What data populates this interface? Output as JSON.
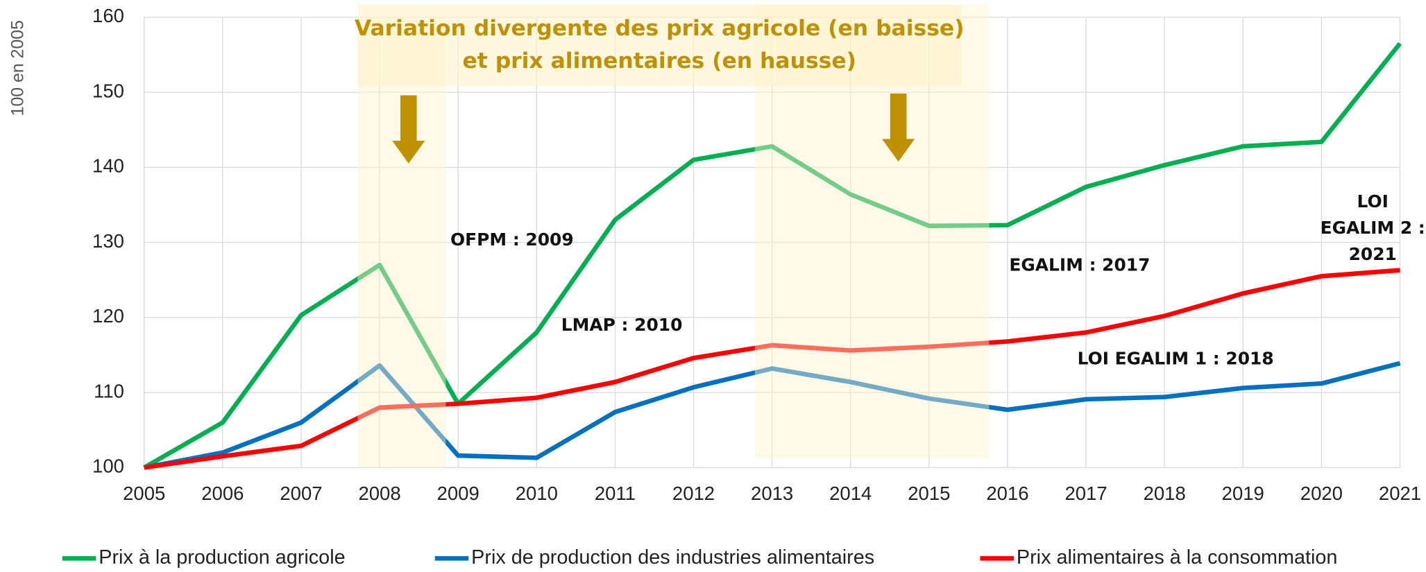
{
  "chart_data": {
    "type": "line",
    "title": [
      "Variation divergente des prix agricole (en baisse)",
      "et prix alimentaires (en hausse)"
    ],
    "y_label": "100 en 2005",
    "x": [
      2005,
      2006,
      2007,
      2008,
      2009,
      2010,
      2011,
      2012,
      2013,
      2014,
      2015,
      2016,
      2017,
      2018,
      2019,
      2020,
      2021
    ],
    "xlim": [
      2005,
      2021
    ],
    "xticks": [
      2005,
      2006,
      2007,
      2008,
      2009,
      2010,
      2011,
      2012,
      2013,
      2014,
      2015,
      2016,
      2017,
      2018,
      2019,
      2020,
      2021
    ],
    "ylim": [
      100,
      160
    ],
    "yticks": [
      100,
      110,
      120,
      130,
      140,
      150,
      160
    ],
    "grid": true,
    "legend": "bottom",
    "series": [
      {
        "name": "Prix à la production agricole",
        "color": "#00b050",
        "values": [
          100,
          106,
          120.3,
          127,
          108.5,
          118,
          133,
          141,
          142.8,
          136.4,
          132.2,
          132.3,
          137.4,
          140.3,
          142.8,
          143.4,
          156.5
        ]
      },
      {
        "name": "Prix de production des industries alimentaires",
        "color": "#0070c0",
        "values": [
          100,
          102,
          106,
          113.6,
          101.6,
          101.3,
          107.4,
          110.7,
          113.2,
          111.4,
          109.2,
          107.7,
          109.1,
          109.4,
          110.6,
          111.2,
          113.9
        ]
      },
      {
        "name": "Prix alimentaires à la consommation",
        "color": "#ff0000",
        "values": [
          100,
          101.5,
          102.9,
          108,
          108.5,
          109.3,
          111.4,
          114.6,
          116.3,
          115.6,
          116.1,
          116.8,
          118,
          120.2,
          123.2,
          125.5,
          126.3
        ]
      }
    ],
    "annotations": [
      [
        "OFPM :  2009"
      ],
      [
        "LMAP : 2010"
      ],
      [
        "EGALIM : 2017"
      ],
      [
        "LOI EGALIM 1 : 2018"
      ],
      [
        "LOI",
        "EGALIM 2 :",
        "2021"
      ]
    ]
  }
}
